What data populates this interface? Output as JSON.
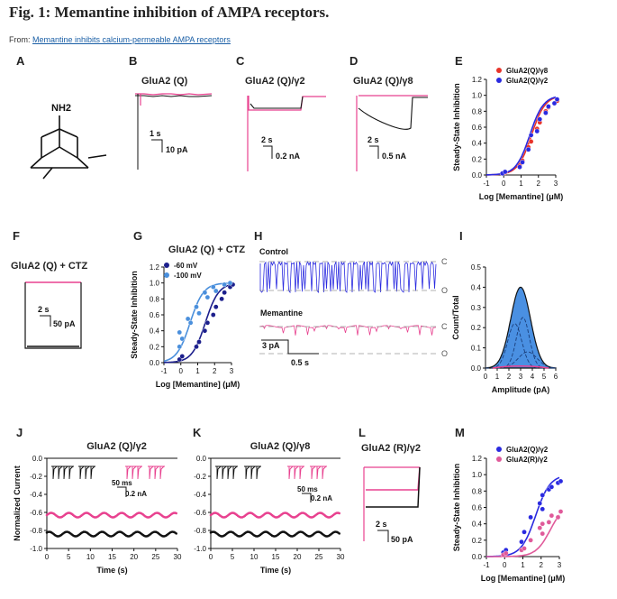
{
  "figure": {
    "title": "Fig. 1: Memantine inhibition of AMPA receptors.",
    "source_prefix": "From: ",
    "source_link": "Memantine inhibits calcium-permeable AMPA receptors"
  },
  "colors": {
    "black": "#111111",
    "pink": "#e8418f",
    "navy": "#1c1f8c",
    "lightblue": "#4a8fdc",
    "blue": "#2a2ae0",
    "red": "#e8342a",
    "grey": "#888888",
    "fillblue": "#4a90e2",
    "lightpink": "#e05a9a"
  },
  "panels": {
    "A": {
      "letter": "A",
      "label": "NH2"
    },
    "B": {
      "letter": "B",
      "title": "GluA2 (Q)",
      "scale_time": "1 s",
      "scale_amp": "10 pA"
    },
    "C": {
      "letter": "C",
      "title": "GluA2 (Q)/γ2",
      "scale_time": "2 s",
      "scale_amp": "0.2 nA"
    },
    "D": {
      "letter": "D",
      "title": "GluA2 (Q)/γ8",
      "scale_time": "2 s",
      "scale_amp": "0.5 nA"
    },
    "F": {
      "letter": "F",
      "title": "GluA2 (Q) + CTZ",
      "scale_time": "2 s",
      "scale_amp": "50 pA"
    },
    "H": {
      "letter": "H",
      "control": "Control",
      "memantine": "Memantine",
      "c": "C",
      "o": "O",
      "scale_amp": "3 pA",
      "scale_time": "0.5 s"
    },
    "K_scale": {
      "time": "50 ms",
      "amp": "0.2 nA"
    },
    "J_scale": {
      "time": "50 ms",
      "amp": "0.2 nA"
    },
    "L": {
      "letter": "L",
      "title": "GluA2 (R)/γ2",
      "scale_time": "2 s",
      "scale_amp": "50 pA"
    }
  },
  "chart_data": [
    {
      "panel": "E",
      "type": "scatter",
      "xlabel": "Log [Memantine] (μM)",
      "ylabel": "Steady-State Inhibition",
      "xlim": [
        -1,
        3
      ],
      "ylim": [
        0,
        1.2
      ],
      "xticks": [
        -1,
        0,
        1,
        2,
        3
      ],
      "yticks": [
        0,
        0.2,
        0.4,
        0.6,
        0.8,
        1.0,
        1.2
      ],
      "legend": "top-left",
      "series": [
        {
          "name": "GluA2(Q)/γ8",
          "color": "#e8342a",
          "x": [
            0,
            0,
            1,
            1,
            1.5,
            1.5,
            2,
            2,
            2.5,
            2.5,
            3,
            3
          ],
          "y": [
            0.02,
            0.03,
            0.12,
            0.18,
            0.35,
            0.42,
            0.58,
            0.66,
            0.8,
            0.85,
            0.9,
            0.93
          ]
        },
        {
          "name": "GluA2(Q)/γ2",
          "color": "#2a2ae0",
          "x": [
            0,
            0,
            1,
            1,
            1.5,
            1.5,
            2,
            2,
            2.5,
            2.5,
            3,
            3
          ],
          "y": [
            0.02,
            0.04,
            0.1,
            0.16,
            0.32,
            0.5,
            0.55,
            0.7,
            0.78,
            0.86,
            0.9,
            0.95
          ]
        }
      ]
    },
    {
      "panel": "G",
      "type": "scatter",
      "title": "GluA2 (Q) + CTZ",
      "xlabel": "Log [Memantine] (μM)",
      "ylabel": "Steady-State Inhibition",
      "xlim": [
        -1,
        3
      ],
      "ylim": [
        0,
        1.2
      ],
      "xticks": [
        -1,
        0,
        1,
        2,
        3
      ],
      "yticks": [
        0,
        0.2,
        0.4,
        0.6,
        0.8,
        1.0,
        1.2
      ],
      "legend": "top-left",
      "series": [
        {
          "name": "-60 mV",
          "color": "#1c1f8c",
          "x": [
            0,
            0,
            1,
            1,
            1.5,
            1.5,
            2,
            2,
            2.5,
            2.5,
            3,
            3
          ],
          "y": [
            0.04,
            0.08,
            0.2,
            0.26,
            0.4,
            0.5,
            0.6,
            0.7,
            0.8,
            0.88,
            0.95,
            0.98
          ]
        },
        {
          "name": "-100 mV",
          "color": "#4a8fdc",
          "x": [
            0,
            0,
            0,
            0.5,
            0.5,
            1,
            1,
            1.5,
            1.5,
            2,
            2,
            2.5,
            3
          ],
          "y": [
            0.2,
            0.3,
            0.38,
            0.5,
            0.55,
            0.62,
            0.7,
            0.82,
            0.88,
            0.9,
            0.95,
            0.98,
            1.0
          ]
        }
      ]
    },
    {
      "panel": "I",
      "type": "histogram",
      "xlabel": "Amplitude (pA)",
      "ylabel": "Count/Total",
      "xlim": [
        0,
        6
      ],
      "ylim": [
        0,
        0.5
      ],
      "xticks": [
        0,
        1,
        2,
        3,
        4,
        5,
        6
      ],
      "yticks": [
        0,
        0.1,
        0.2,
        0.3,
        0.4,
        0.5
      ],
      "peak_center": 3.0,
      "peak_height": 0.4
    },
    {
      "panel": "J",
      "type": "scatter",
      "title": "GluA2 (Q)/γ2",
      "xlabel": "Time (s)",
      "ylabel": "Normalized Current",
      "xlim": [
        0,
        30
      ],
      "ylim": [
        -1.0,
        0.0
      ],
      "xticks": [
        0,
        5,
        10,
        15,
        20,
        25,
        30
      ],
      "yticks": [
        0.0,
        -0.2,
        -0.4,
        -0.6,
        -0.8,
        -1.0
      ],
      "series": [
        {
          "name": "",
          "color": "#e8418f",
          "mean": -0.63
        },
        {
          "name": "",
          "color": "#111111",
          "mean": -0.84
        }
      ]
    },
    {
      "panel": "K",
      "type": "scatter",
      "title": "GluA2 (Q)/γ8",
      "xlabel": "Time (s)",
      "ylabel": "",
      "xlim": [
        0,
        30
      ],
      "ylim": [
        -1.0,
        0.0
      ],
      "xticks": [
        0,
        5,
        10,
        15,
        20,
        25,
        30
      ],
      "yticks": [
        0.0,
        -0.2,
        -0.4,
        -0.6,
        -0.8,
        -1.0
      ],
      "series": [
        {
          "name": "",
          "color": "#e8418f",
          "mean": -0.63
        },
        {
          "name": "",
          "color": "#111111",
          "mean": -0.84
        }
      ]
    },
    {
      "panel": "M",
      "type": "scatter",
      "xlabel": "Log [Memantine] (μM)",
      "ylabel": "Steady-State Inhibition",
      "xlim": [
        -1,
        3
      ],
      "ylim": [
        0,
        1.2
      ],
      "xticks": [
        -1,
        0,
        1,
        2,
        3
      ],
      "yticks": [
        0,
        0.2,
        0.4,
        0.6,
        0.8,
        1.0,
        1.2
      ],
      "legend": "top-left",
      "series": [
        {
          "name": "GluA2(Q)/γ2",
          "color": "#2a2ae0",
          "x": [
            0,
            0,
            1,
            1,
            1.5,
            2,
            2,
            2,
            2.5,
            2.5,
            3,
            3
          ],
          "y": [
            0.05,
            0.08,
            0.18,
            0.3,
            0.48,
            0.58,
            0.65,
            0.75,
            0.82,
            0.85,
            0.9,
            0.92
          ]
        },
        {
          "name": "GluA2(R)/γ2",
          "color": "#e05a9a",
          "x": [
            0,
            0,
            1,
            1,
            1.5,
            2,
            2,
            2,
            2.5,
            2.5,
            3,
            3
          ],
          "y": [
            0.02,
            0.04,
            0.08,
            0.1,
            0.2,
            0.28,
            0.35,
            0.4,
            0.42,
            0.5,
            0.48,
            0.55
          ]
        }
      ]
    }
  ]
}
